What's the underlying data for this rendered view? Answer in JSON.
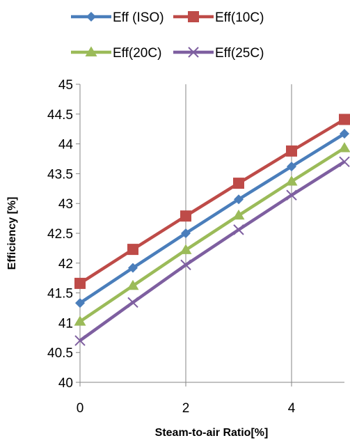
{
  "chart_data": {
    "type": "line",
    "title": "",
    "xlabel": "Steam-to-air Ratio[%]",
    "ylabel": "Efficiency [%]",
    "x": [
      0,
      1,
      2,
      3,
      4,
      5
    ],
    "xlim": [
      0,
      5
    ],
    "ylim": [
      40,
      45
    ],
    "xticks": [
      0,
      2,
      4
    ],
    "yticks": [
      40,
      40.5,
      41,
      41.5,
      42,
      42.5,
      43,
      43.5,
      44,
      44.5,
      45
    ],
    "grid": {
      "vertical": true,
      "horizontal": false
    },
    "legend_position": "top",
    "series": [
      {
        "name": "Eff (ISO)",
        "color": "#4A7EBB",
        "marker": "diamond",
        "values": [
          41.33,
          41.92,
          42.5,
          43.07,
          43.62,
          44.17
        ]
      },
      {
        "name": "Eff(10C)",
        "color": "#BE4B48",
        "marker": "square",
        "values": [
          41.66,
          42.23,
          42.79,
          43.34,
          43.88,
          44.41
        ]
      },
      {
        "name": "Eff(20C)",
        "color": "#9BBB59",
        "marker": "triangle",
        "values": [
          41.02,
          41.62,
          42.22,
          42.8,
          43.37,
          43.93
        ]
      },
      {
        "name": "Eff(25C)",
        "color": "#7E5FA0",
        "marker": "x",
        "values": [
          40.7,
          41.34,
          41.97,
          42.56,
          43.14,
          43.7
        ]
      }
    ]
  }
}
